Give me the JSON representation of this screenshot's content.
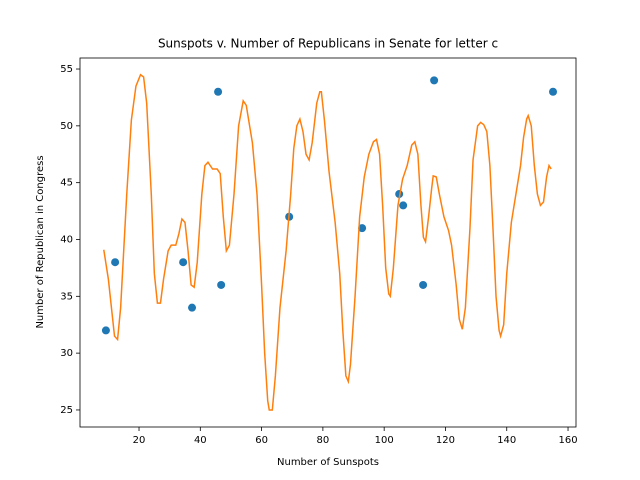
{
  "chart_data": {
    "type": "scatter",
    "title": "Sunspots v. Number of Republicans in Senate for letter c",
    "x_label": "Number of Sunspots",
    "y_label": "Number of Republican in Congress",
    "xlim": [
      0.74,
      162.6
    ],
    "ylim": [
      23.5,
      55.97
    ],
    "xticks": [
      20,
      40,
      60,
      80,
      100,
      120,
      140,
      160
    ],
    "yticks": [
      25,
      30,
      35,
      40,
      45,
      50,
      55
    ],
    "grid": false,
    "series": [
      {
        "type": "scatter",
        "color": "#1f77b4",
        "x": [
          9.2,
          12.2,
          34.4,
          37.3,
          45.8,
          46.8,
          69,
          92.8,
          104.9,
          106.2,
          112.7,
          116.3,
          155.1
        ],
        "values": [
          32,
          38,
          38,
          34,
          53,
          36,
          42,
          41,
          44,
          43,
          36,
          54,
          53
        ]
      },
      {
        "type": "line",
        "color": "#ff7f0e",
        "x": [
          8.5,
          10,
          12,
          13,
          14,
          16,
          17.5,
          19,
          20.5,
          21.5,
          22.5,
          24,
          25,
          26,
          27,
          28,
          29.5,
          30.5,
          32,
          33,
          34,
          35,
          36,
          37,
          38,
          39,
          40.5,
          41.5,
          42.5,
          44,
          45.5,
          46.5,
          47.5,
          48.5,
          49.5,
          51,
          52.5,
          54,
          55,
          57,
          58.5,
          60,
          61,
          62,
          62.5,
          63.5,
          64.5,
          66,
          68,
          69.5,
          70.5,
          71.5,
          72.5,
          73.5,
          74.5,
          75.5,
          76.5,
          78,
          79,
          79.5,
          80.5,
          82,
          84,
          85.5,
          86.5,
          87.5,
          88.3,
          89,
          90.5,
          92,
          93.5,
          95,
          96.5,
          97.5,
          98.5,
          99.5,
          100.5,
          101.5,
          102,
          103,
          104.5,
          106,
          107.5,
          109,
          110,
          111,
          112,
          112.8,
          113.5,
          114.5,
          115.5,
          116,
          117,
          118,
          119.5,
          121,
          122,
          123.5,
          124.5,
          125.5,
          126.5,
          128,
          129,
          130.5,
          131.5,
          132.5,
          133.5,
          134.5,
          135.5,
          136.5,
          137.5,
          138,
          139,
          140,
          141.5,
          143,
          144.5,
          145.5,
          146.5,
          147,
          148,
          149,
          150,
          151,
          152,
          153,
          153.8,
          154.5
        ],
        "values": [
          39.1,
          36.5,
          31.5,
          31.2,
          34,
          44,
          50.5,
          53.5,
          54.5,
          54.3,
          52,
          44,
          37,
          34.4,
          34.4,
          36.5,
          39,
          39.5,
          39.5,
          40.5,
          41.8,
          41.5,
          39,
          36,
          35.8,
          38,
          44,
          46.5,
          46.8,
          46.2,
          46.2,
          45.8,
          42,
          39,
          39.5,
          44,
          50,
          52.2,
          51.8,
          48.5,
          44,
          36,
          30,
          25.8,
          25,
          25,
          28,
          34,
          39,
          44,
          48,
          50,
          50.6,
          49.5,
          47.5,
          47,
          48.5,
          52,
          53,
          53,
          50.5,
          46,
          41.5,
          37,
          32,
          28,
          27.5,
          29,
          35,
          42,
          45.5,
          47.5,
          48.6,
          48.8,
          47.5,
          43,
          37.5,
          35.2,
          35,
          37.5,
          43,
          45.3,
          46.5,
          48.3,
          48.6,
          47.5,
          43,
          40.2,
          39.8,
          42,
          44.5,
          45.6,
          45.5,
          44,
          42,
          40.8,
          39.5,
          36,
          33,
          32.1,
          34,
          41,
          47,
          50,
          50.3,
          50.1,
          49.5,
          46.5,
          41,
          35,
          32,
          31.5,
          32.5,
          37,
          41.5,
          44,
          46.5,
          49,
          50.6,
          50.9,
          50,
          46.5,
          44,
          43,
          43.3,
          45.5,
          46.5,
          46.2
        ]
      }
    ]
  }
}
